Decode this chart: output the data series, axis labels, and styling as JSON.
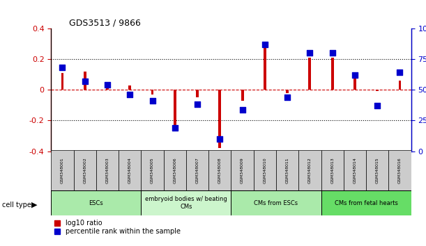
{
  "title": "GDS3513 / 9866",
  "samples": [
    "GSM348001",
    "GSM348002",
    "GSM348003",
    "GSM348004",
    "GSM348005",
    "GSM348006",
    "GSM348007",
    "GSM348008",
    "GSM348009",
    "GSM348010",
    "GSM348011",
    "GSM348012",
    "GSM348013",
    "GSM348014",
    "GSM348015",
    "GSM348016"
  ],
  "log10_ratio": [
    0.11,
    0.12,
    0.03,
    0.03,
    -0.03,
    -0.27,
    -0.05,
    -0.38,
    -0.07,
    0.31,
    -0.02,
    0.21,
    0.21,
    0.09,
    -0.01,
    0.06
  ],
  "percentile_rank": [
    68,
    57,
    54,
    46,
    41,
    19,
    38,
    10,
    34,
    87,
    44,
    80,
    80,
    62,
    37,
    64
  ],
  "cell_type_groups": [
    {
      "label": "ESCs",
      "start": 0,
      "end": 3,
      "color": "#aaeaaa"
    },
    {
      "label": "embryoid bodies w/ beating\nCMs",
      "start": 4,
      "end": 7,
      "color": "#ccf5cc"
    },
    {
      "label": "CMs from ESCs",
      "start": 8,
      "end": 11,
      "color": "#aaeaaa"
    },
    {
      "label": "CMs from fetal hearts",
      "start": 12,
      "end": 15,
      "color": "#66dd66"
    }
  ],
  "ylim_left": [
    -0.4,
    0.4
  ],
  "ylim_right": [
    0,
    100
  ],
  "bar_color_red": "#CC0000",
  "bar_color_blue": "#0000CC",
  "dotted_line_color": "#000000",
  "zero_line_color": "#CC0000",
  "bg_color": "#ffffff",
  "red_bar_width": 0.12,
  "blue_marker_size": 40
}
